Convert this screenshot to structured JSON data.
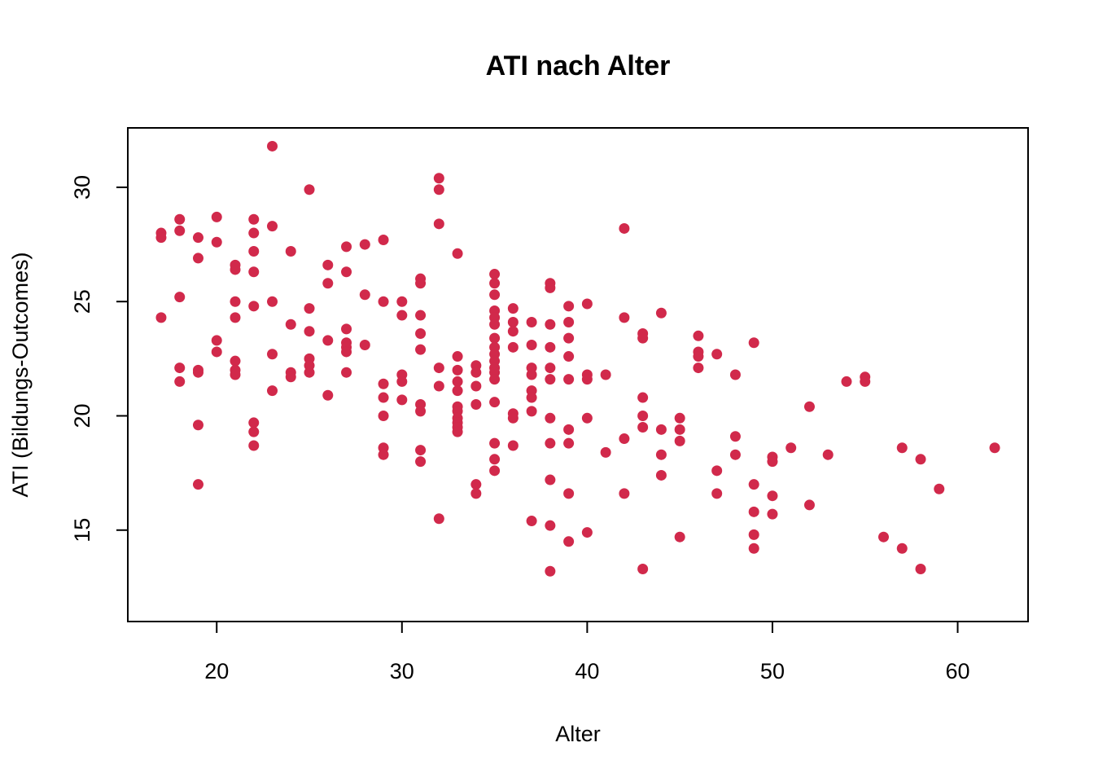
{
  "chart_data": {
    "type": "scatter",
    "title": "ATI nach Alter",
    "xlabel": "Alter",
    "ylabel": "ATI (Bildungs-Outcomes)",
    "xlim": [
      15.2,
      63.8
    ],
    "ylim": [
      11.0,
      32.6
    ],
    "xticks": [
      20,
      30,
      40,
      50,
      60
    ],
    "yticks": [
      15,
      20,
      25,
      30
    ],
    "grid": false,
    "legend": "none",
    "point_color": "#d1294b",
    "series": [
      {
        "name": "ATI",
        "points": [
          [
            17,
            28.0
          ],
          [
            17,
            27.8
          ],
          [
            17,
            24.3
          ],
          [
            18,
            28.6
          ],
          [
            18,
            28.1
          ],
          [
            18,
            25.2
          ],
          [
            18,
            22.1
          ],
          [
            18,
            21.5
          ],
          [
            19,
            27.8
          ],
          [
            19,
            26.9
          ],
          [
            19,
            22.0
          ],
          [
            19,
            21.9
          ],
          [
            19,
            19.6
          ],
          [
            19,
            17.0
          ],
          [
            20,
            28.7
          ],
          [
            20,
            27.6
          ],
          [
            20,
            23.3
          ],
          [
            20,
            22.8
          ],
          [
            21,
            26.6
          ],
          [
            21,
            26.4
          ],
          [
            21,
            25.0
          ],
          [
            21,
            24.3
          ],
          [
            21,
            22.4
          ],
          [
            21,
            22.0
          ],
          [
            21,
            21.8
          ],
          [
            22,
            28.6
          ],
          [
            22,
            28.0
          ],
          [
            22,
            27.2
          ],
          [
            22,
            26.3
          ],
          [
            22,
            24.8
          ],
          [
            22,
            19.7
          ],
          [
            22,
            19.3
          ],
          [
            22,
            18.7
          ],
          [
            23,
            31.8
          ],
          [
            23,
            28.3
          ],
          [
            23,
            25.0
          ],
          [
            23,
            22.7
          ],
          [
            23,
            21.1
          ],
          [
            24,
            27.2
          ],
          [
            24,
            24.0
          ],
          [
            24,
            21.9
          ],
          [
            24,
            21.7
          ],
          [
            25,
            29.9
          ],
          [
            25,
            24.7
          ],
          [
            25,
            23.7
          ],
          [
            25,
            22.5
          ],
          [
            25,
            22.2
          ],
          [
            25,
            21.9
          ],
          [
            26,
            26.6
          ],
          [
            26,
            25.8
          ],
          [
            26,
            23.3
          ],
          [
            26,
            20.9
          ],
          [
            27,
            27.4
          ],
          [
            27,
            26.3
          ],
          [
            27,
            23.8
          ],
          [
            27,
            23.2
          ],
          [
            27,
            23.0
          ],
          [
            27,
            22.8
          ],
          [
            27,
            21.9
          ],
          [
            28,
            27.5
          ],
          [
            28,
            25.3
          ],
          [
            28,
            23.1
          ],
          [
            29,
            27.7
          ],
          [
            29,
            25.0
          ],
          [
            29,
            21.4
          ],
          [
            29,
            20.8
          ],
          [
            29,
            20.0
          ],
          [
            29,
            18.6
          ],
          [
            29,
            18.3
          ],
          [
            30,
            25.0
          ],
          [
            30,
            24.4
          ],
          [
            30,
            21.8
          ],
          [
            30,
            21.5
          ],
          [
            30,
            20.7
          ],
          [
            31,
            26.0
          ],
          [
            31,
            25.8
          ],
          [
            31,
            24.4
          ],
          [
            31,
            23.6
          ],
          [
            31,
            22.9
          ],
          [
            31,
            20.5
          ],
          [
            31,
            20.2
          ],
          [
            31,
            18.5
          ],
          [
            31,
            18.0
          ],
          [
            32,
            30.4
          ],
          [
            32,
            29.9
          ],
          [
            32,
            28.4
          ],
          [
            32,
            22.1
          ],
          [
            32,
            21.3
          ],
          [
            32,
            15.5
          ],
          [
            33,
            27.1
          ],
          [
            33,
            22.6
          ],
          [
            33,
            22.0
          ],
          [
            33,
            21.5
          ],
          [
            33,
            21.1
          ],
          [
            33,
            20.4
          ],
          [
            33,
            20.2
          ],
          [
            33,
            19.9
          ],
          [
            33,
            19.7
          ],
          [
            33,
            19.5
          ],
          [
            33,
            19.3
          ],
          [
            34,
            22.2
          ],
          [
            34,
            21.9
          ],
          [
            34,
            21.3
          ],
          [
            34,
            20.5
          ],
          [
            34,
            17.0
          ],
          [
            34,
            16.6
          ],
          [
            35,
            26.2
          ],
          [
            35,
            25.8
          ],
          [
            35,
            25.3
          ],
          [
            35,
            24.6
          ],
          [
            35,
            24.3
          ],
          [
            35,
            24.0
          ],
          [
            35,
            23.4
          ],
          [
            35,
            23.0
          ],
          [
            35,
            22.7
          ],
          [
            35,
            22.4
          ],
          [
            35,
            22.1
          ],
          [
            35,
            21.9
          ],
          [
            35,
            21.6
          ],
          [
            35,
            20.6
          ],
          [
            35,
            18.8
          ],
          [
            35,
            18.1
          ],
          [
            35,
            17.6
          ],
          [
            36,
            24.7
          ],
          [
            36,
            24.1
          ],
          [
            36,
            23.7
          ],
          [
            36,
            23.0
          ],
          [
            36,
            20.1
          ],
          [
            36,
            19.9
          ],
          [
            36,
            18.7
          ],
          [
            37,
            24.1
          ],
          [
            37,
            23.1
          ],
          [
            37,
            22.1
          ],
          [
            37,
            21.8
          ],
          [
            37,
            21.1
          ],
          [
            37,
            20.8
          ],
          [
            37,
            20.2
          ],
          [
            37,
            15.4
          ],
          [
            38,
            25.8
          ],
          [
            38,
            25.6
          ],
          [
            38,
            24.0
          ],
          [
            38,
            23.0
          ],
          [
            38,
            22.1
          ],
          [
            38,
            21.6
          ],
          [
            38,
            19.9
          ],
          [
            38,
            18.8
          ],
          [
            38,
            17.2
          ],
          [
            38,
            15.2
          ],
          [
            38,
            13.2
          ],
          [
            39,
            24.8
          ],
          [
            39,
            24.1
          ],
          [
            39,
            23.4
          ],
          [
            39,
            22.6
          ],
          [
            39,
            21.6
          ],
          [
            39,
            19.4
          ],
          [
            39,
            18.8
          ],
          [
            39,
            16.6
          ],
          [
            39,
            14.5
          ],
          [
            40,
            24.9
          ],
          [
            40,
            21.8
          ],
          [
            40,
            21.6
          ],
          [
            40,
            19.9
          ],
          [
            40,
            14.9
          ],
          [
            41,
            21.8
          ],
          [
            41,
            18.4
          ],
          [
            42,
            28.2
          ],
          [
            42,
            24.3
          ],
          [
            42,
            19.0
          ],
          [
            42,
            16.6
          ],
          [
            43,
            23.6
          ],
          [
            43,
            23.4
          ],
          [
            43,
            20.8
          ],
          [
            43,
            20.0
          ],
          [
            43,
            19.5
          ],
          [
            43,
            13.3
          ],
          [
            44,
            24.5
          ],
          [
            44,
            19.4
          ],
          [
            44,
            18.3
          ],
          [
            44,
            17.4
          ],
          [
            45,
            19.9
          ],
          [
            45,
            19.4
          ],
          [
            45,
            18.9
          ],
          [
            45,
            14.7
          ],
          [
            46,
            23.5
          ],
          [
            46,
            22.8
          ],
          [
            46,
            22.6
          ],
          [
            46,
            22.1
          ],
          [
            47,
            22.7
          ],
          [
            47,
            17.6
          ],
          [
            47,
            16.6
          ],
          [
            48,
            21.8
          ],
          [
            48,
            19.1
          ],
          [
            48,
            18.3
          ],
          [
            49,
            23.2
          ],
          [
            49,
            17.0
          ],
          [
            49,
            15.8
          ],
          [
            49,
            14.8
          ],
          [
            49,
            14.2
          ],
          [
            50,
            18.2
          ],
          [
            50,
            18.0
          ],
          [
            50,
            16.5
          ],
          [
            50,
            15.7
          ],
          [
            51,
            18.6
          ],
          [
            52,
            20.4
          ],
          [
            52,
            16.1
          ],
          [
            53,
            18.3
          ],
          [
            54,
            21.5
          ],
          [
            55,
            21.7
          ],
          [
            55,
            21.5
          ],
          [
            56,
            14.7
          ],
          [
            57,
            18.6
          ],
          [
            57,
            14.2
          ],
          [
            58,
            18.1
          ],
          [
            58,
            13.3
          ],
          [
            59,
            16.8
          ],
          [
            62,
            18.6
          ]
        ]
      }
    ]
  }
}
